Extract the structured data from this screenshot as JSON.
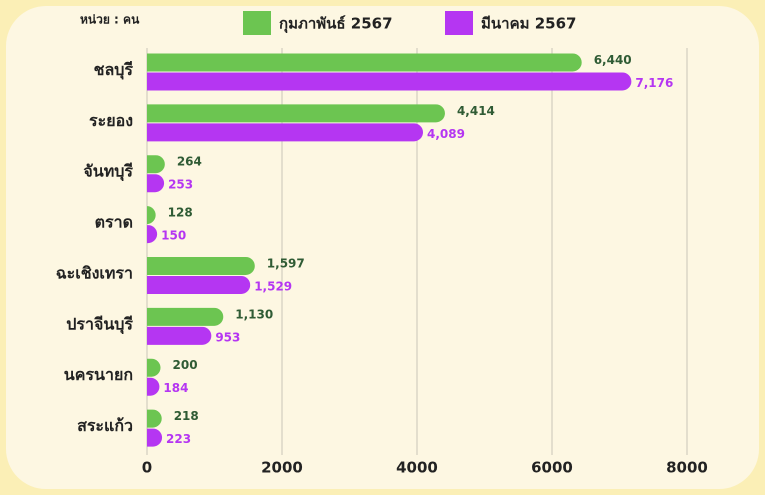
{
  "chart_data": {
    "type": "hbar",
    "unit_label": "หน่วย : คน",
    "categories": [
      "ชลบุรี",
      "ระยอง",
      "จันทบุรี",
      "ตราด",
      "ฉะเชิงเทรา",
      "ปราจีนบุรี",
      "นครนายก",
      "สระแก้ว"
    ],
    "series": [
      {
        "name": "กุมภาพันธ์ 2567",
        "color": "#6cc551",
        "label_color": "#2f5b34",
        "values": [
          6440,
          4414,
          264,
          128,
          1597,
          1130,
          200,
          218
        ],
        "value_labels": [
          "6,440",
          "4,414",
          "264",
          "128",
          "1,597",
          "1,130",
          "200",
          "218"
        ]
      },
      {
        "name": "มีนาคม 2567",
        "color": "#b536f2",
        "label_color": "#b536f2",
        "values": [
          7176,
          4089,
          253,
          150,
          1529,
          953,
          184,
          223
        ],
        "value_labels": [
          "7,176",
          "4,089",
          "253",
          "150",
          "1,529",
          "953",
          "184",
          "223"
        ]
      }
    ],
    "xlim": [
      0,
      8000
    ],
    "xticks": [
      0,
      2000,
      4000,
      6000,
      8000
    ],
    "grid": true
  }
}
